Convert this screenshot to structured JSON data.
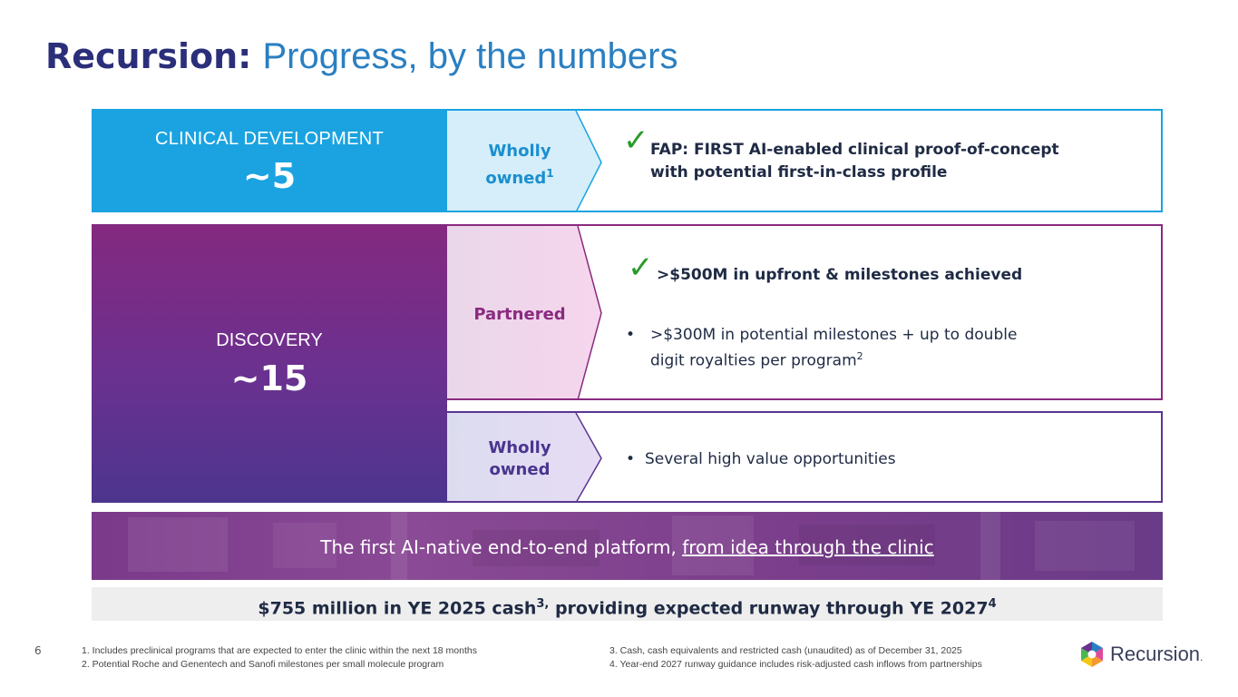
{
  "title": {
    "bold": "Recursion:",
    "light": "Progress, by the numbers"
  },
  "clinical": {
    "label": "CLINICAL DEVELOPMENT",
    "count": "~5",
    "chevron_line1": "Wholly",
    "chevron_line2": "owned",
    "chevron_sup": "1",
    "line1": "FAP: FIRST AI-enabled clinical proof-of-concept",
    "line2": "with potential first-in-class profile"
  },
  "discovery": {
    "label": "DISCOVERY",
    "count": "~15",
    "partnered": {
      "chevron": "Partnered",
      "achieved": ">$500M in upfront & milestones achieved",
      "bullet_symbol": "•",
      "bullet_line1": ">$300M in potential milestones + up to double",
      "bullet_line2": "digit royalties per program",
      "bullet_sup": "2"
    },
    "wholly": {
      "chevron_line1": "Wholly",
      "chevron_line2": "owned",
      "bullet_symbol": "•",
      "bullet": "Several high value opportunities"
    }
  },
  "platform": {
    "text": "The first AI-native end-to-end platform, ",
    "underlined": "from idea through the clinic"
  },
  "cash": {
    "part1": "$755 million in YE 2025 cash",
    "sup1": "3,",
    "part2": " providing expected runway through YE 2027",
    "sup2": "4"
  },
  "page_number": "6",
  "footnotes": {
    "f1": "1.  Includes preclinical programs that are expected to enter the clinic within the next 18 months",
    "f2": "2.  Potential Roche and Genentech and Sanofi milestones per small molecule program",
    "f3": "3.  Cash, cash equivalents and restricted cash (unaudited) as of December 31, 2025",
    "f4": "4.  Year-end 2027 runway guidance includes risk-adjusted cash inflows from partnerships"
  },
  "logo": {
    "text": "Recursion",
    "mark": "."
  },
  "colors": {
    "clinical_blue": "#1aa3e0",
    "discovery_purple": "#84297f",
    "check_green": "#2a9a2a",
    "title_navy": "#2b2f7a",
    "title_blue": "#2a7fc1"
  },
  "icons": {
    "check": "check-icon",
    "logo": "recursion-logo-icon"
  }
}
